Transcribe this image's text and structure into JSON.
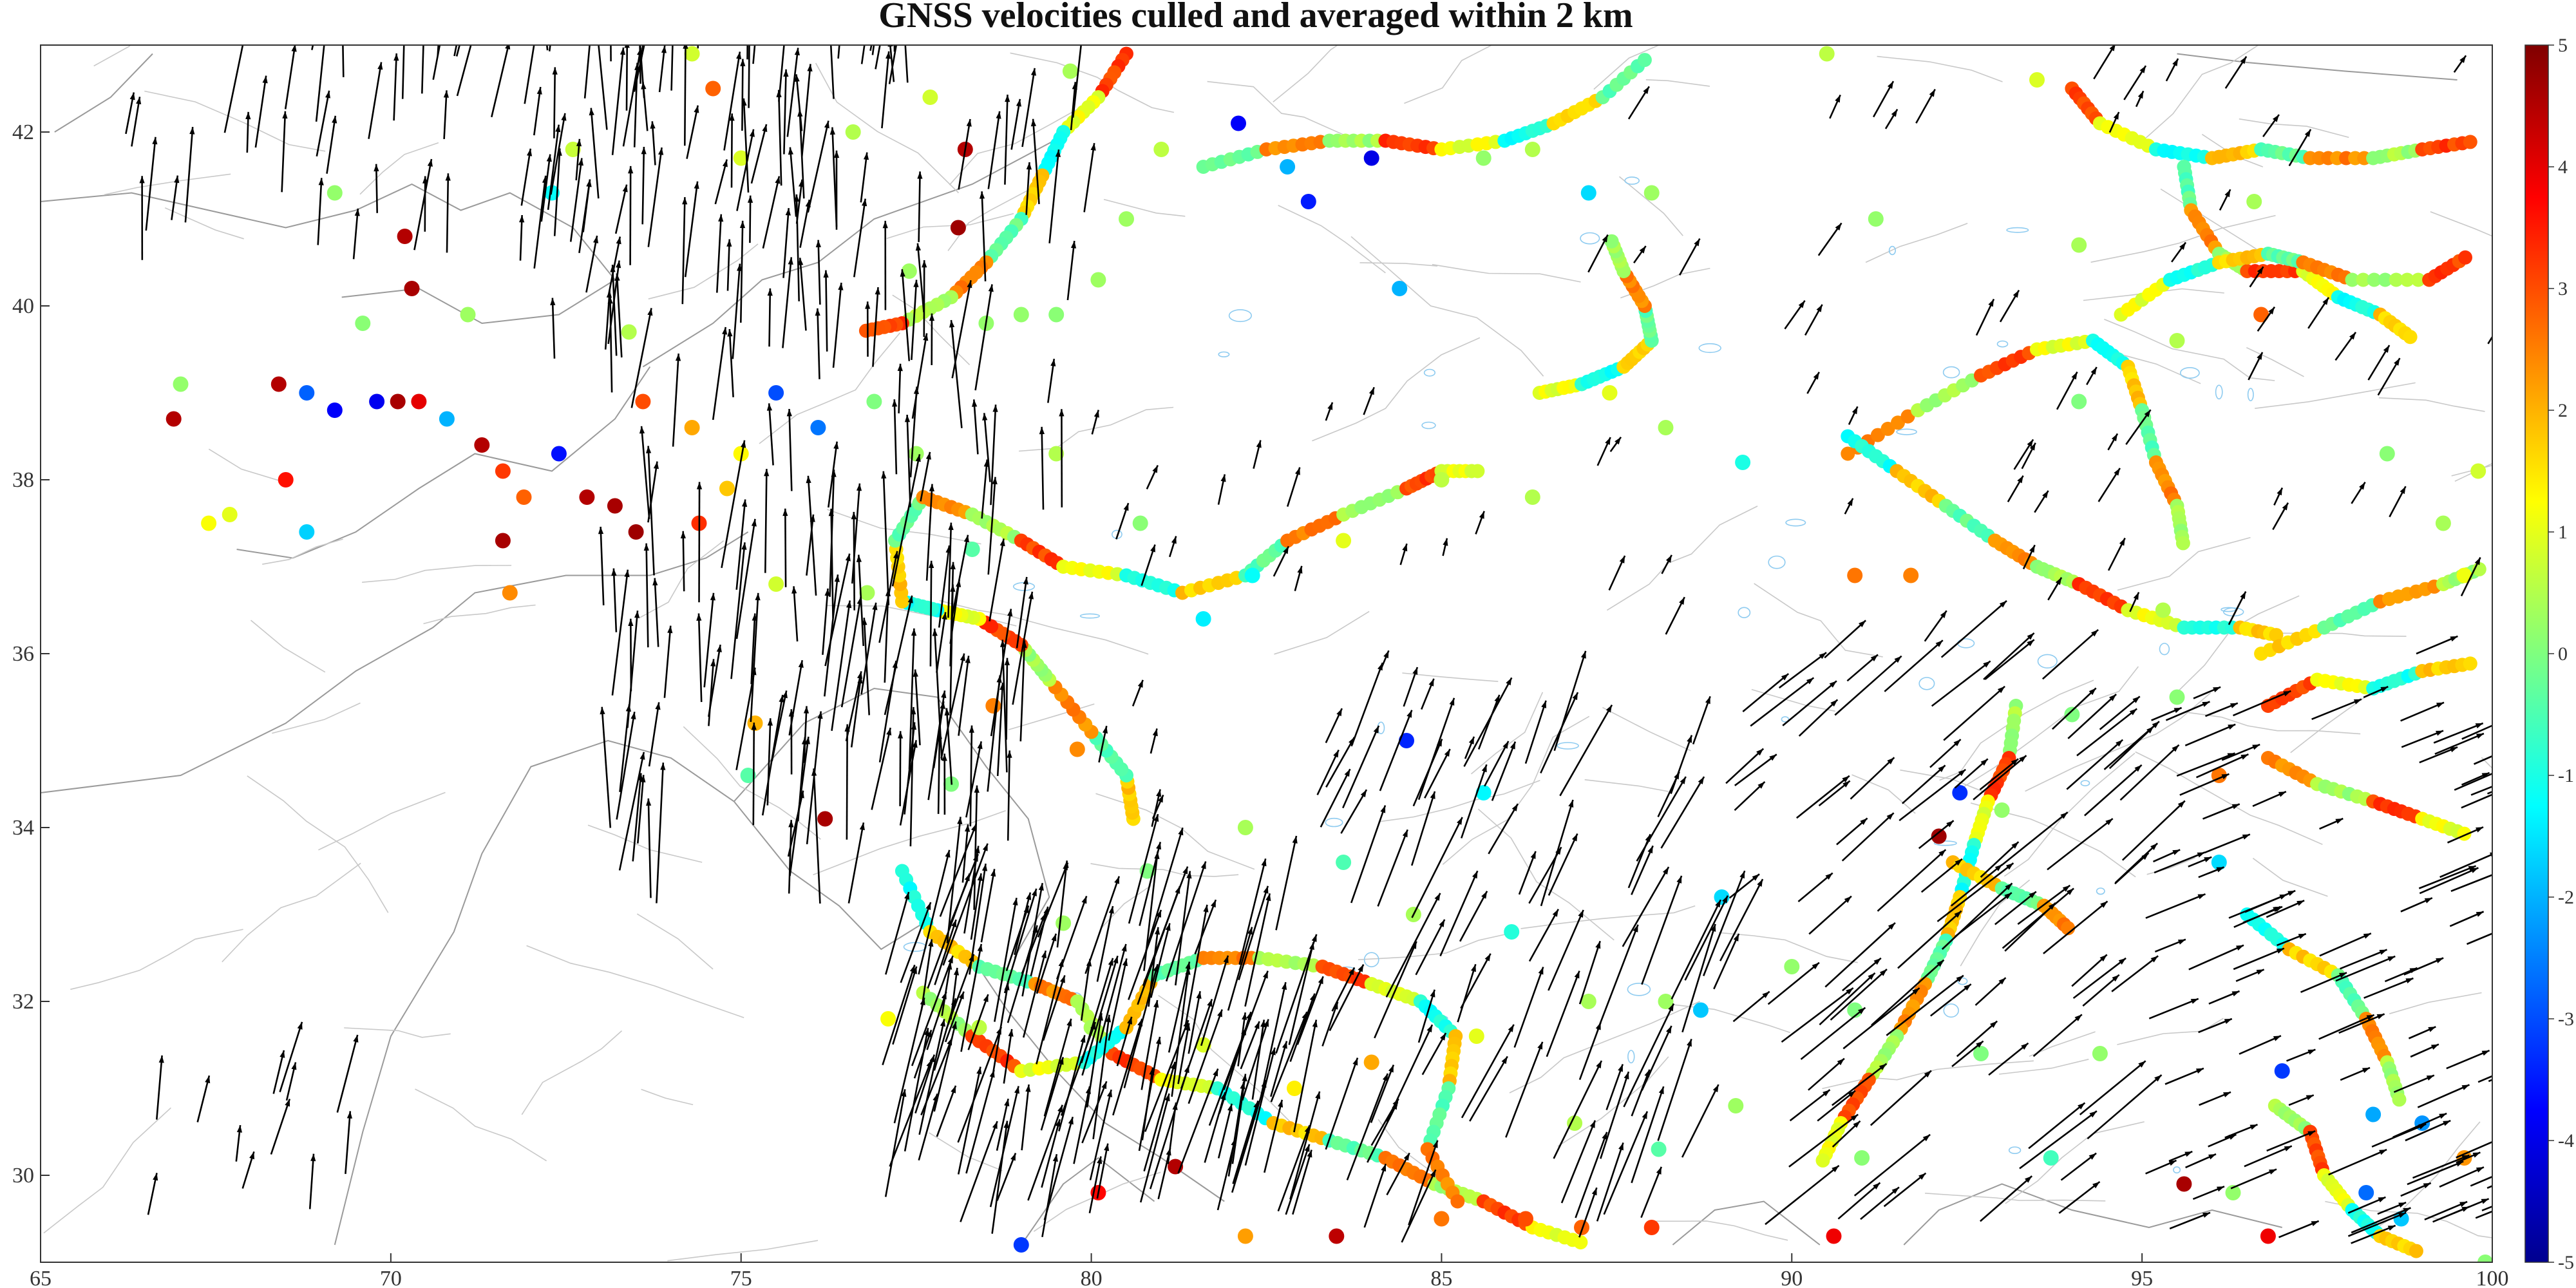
{
  "title": "GNSS velocities culled and averaged within 2 km",
  "map": {
    "x_ticks": [
      "65",
      "70",
      "75",
      "80",
      "85",
      "90",
      "95",
      "100"
    ],
    "y_ticks": [
      "42",
      "40",
      "38",
      "36",
      "34",
      "32",
      "30"
    ],
    "lon_range": [
      65,
      100
    ],
    "lat_range": [
      29.0,
      43.0
    ]
  },
  "colorbar": {
    "ticks": [
      "5",
      "4",
      "3",
      "2",
      "1",
      "0",
      "-1",
      "-2",
      "-3",
      "-4",
      "-5"
    ],
    "range": [
      -5,
      5
    ],
    "colormap": "jet"
  },
  "colors": {
    "arrow": "#000000",
    "border": "#9a9a9a",
    "fault": "#c8c8c8",
    "lake": "#8ecbf0",
    "frame": "#333333"
  },
  "chart_data": {
    "type": "scatter",
    "title": "GNSS velocities culled and averaged within 2 km",
    "xlim": [
      65,
      100
    ],
    "ylim": [
      29.0,
      43.0
    ],
    "colorbar_range": [
      -5,
      5
    ],
    "points": [
      [
        67.0,
        39.1,
        0.2
      ],
      [
        66.9,
        38.7,
        4.5
      ],
      [
        67.4,
        37.5,
        1.2
      ],
      [
        68.5,
        38.0,
        3.6
      ],
      [
        68.4,
        39.1,
        4.5
      ],
      [
        68.8,
        39.0,
        -2.8
      ],
      [
        69.2,
        38.8,
        -3.8
      ],
      [
        69.8,
        38.9,
        -3.9
      ],
      [
        70.1,
        38.9,
        4.6
      ],
      [
        70.4,
        38.9,
        4.0
      ],
      [
        70.8,
        38.7,
        -2.0
      ],
      [
        71.3,
        38.4,
        4.5
      ],
      [
        71.6,
        38.1,
        3.2
      ],
      [
        71.9,
        37.8,
        2.8
      ],
      [
        71.6,
        37.3,
        4.6
      ],
      [
        71.7,
        36.7,
        2.4
      ],
      [
        72.4,
        38.3,
        -3.6
      ],
      [
        72.8,
        37.8,
        4.5
      ],
      [
        73.2,
        37.7,
        4.6
      ],
      [
        73.5,
        37.4,
        4.7
      ],
      [
        74.4,
        37.5,
        3.3
      ],
      [
        74.3,
        38.6,
        2.1
      ],
      [
        73.6,
        38.9,
        3.0
      ],
      [
        70.2,
        40.8,
        4.5
      ],
      [
        70.3,
        40.2,
        4.6
      ],
      [
        69.2,
        41.3,
        0.2
      ],
      [
        72.3,
        41.3,
        -1.2
      ],
      [
        72.6,
        41.8,
        0.7
      ],
      [
        74.3,
        42.9,
        0.8
      ],
      [
        74.6,
        42.5,
        2.8
      ],
      [
        75.0,
        41.7,
        0.9
      ],
      [
        76.6,
        42.0,
        0.5
      ],
      [
        77.7,
        42.4,
        0.8
      ],
      [
        79.7,
        42.7,
        0.4
      ],
      [
        78.2,
        41.8,
        4.5
      ],
      [
        78.1,
        40.9,
        4.7
      ],
      [
        77.4,
        40.4,
        0.3
      ],
      [
        78.5,
        39.8,
        0.2
      ],
      [
        79.0,
        39.9,
        0.2
      ],
      [
        79.5,
        39.9,
        0.1
      ],
      [
        80.1,
        40.3,
        0.3
      ],
      [
        80.5,
        41.0,
        0.3
      ],
      [
        81.0,
        41.8,
        0.6
      ],
      [
        82.1,
        42.1,
        -3.8
      ],
      [
        82.8,
        41.6,
        -2.0
      ],
      [
        83.1,
        41.2,
        -3.5
      ],
      [
        84.0,
        41.7,
        -4.0
      ],
      [
        84.4,
        40.2,
        -2.0
      ],
      [
        85.6,
        41.7,
        0.2
      ],
      [
        86.3,
        41.8,
        0.5
      ],
      [
        87.1,
        41.3,
        -1.6
      ],
      [
        88.0,
        41.3,
        0.3
      ],
      [
        90.5,
        42.9,
        0.6
      ],
      [
        91.2,
        41.0,
        0.2
      ],
      [
        75.2,
        35.2,
        2.0
      ],
      [
        75.1,
        34.6,
        -0.4
      ],
      [
        76.2,
        34.1,
        4.6
      ],
      [
        78.0,
        34.5,
        0.0
      ],
      [
        78.6,
        35.4,
        2.5
      ],
      [
        79.8,
        34.9,
        2.4
      ],
      [
        82.2,
        34.0,
        0.4
      ],
      [
        83.6,
        33.6,
        -0.5
      ],
      [
        84.6,
        33.0,
        0.4
      ],
      [
        86.0,
        32.8,
        -0.9
      ],
      [
        87.1,
        32.0,
        0.4
      ],
      [
        88.2,
        32.0,
        0.3
      ],
      [
        89.0,
        33.2,
        -1.6
      ],
      [
        88.7,
        31.9,
        -1.8
      ],
      [
        90.0,
        32.4,
        0.2
      ],
      [
        91.0,
        30.2,
        0.1
      ],
      [
        79.0,
        29.2,
        -3.2
      ],
      [
        80.1,
        29.8,
        3.7
      ],
      [
        81.2,
        30.1,
        4.5
      ],
      [
        82.2,
        29.3,
        2.2
      ],
      [
        83.5,
        29.3,
        4.4
      ],
      [
        85.0,
        29.5,
        2.6
      ],
      [
        86.2,
        29.5,
        3.0
      ],
      [
        87.0,
        29.4,
        2.8
      ],
      [
        88.0,
        29.4,
        3.2
      ],
      [
        90.6,
        29.3,
        3.9
      ],
      [
        92.4,
        34.4,
        -3.3
      ],
      [
        92.1,
        33.9,
        4.7
      ],
      [
        93.0,
        34.2,
        0.2
      ],
      [
        94.0,
        35.3,
        0.0
      ],
      [
        95.5,
        35.5,
        0.1
      ],
      [
        95.3,
        36.5,
        0.5
      ],
      [
        96.1,
        34.6,
        2.6
      ],
      [
        96.1,
        33.6,
        -1.6
      ],
      [
        97.0,
        31.2,
        -3.2
      ],
      [
        98.3,
        30.7,
        -2.1
      ],
      [
        99.0,
        30.6,
        -2.3
      ],
      [
        98.2,
        29.8,
        -2.7
      ],
      [
        99.6,
        30.2,
        2.3
      ],
      [
        95.6,
        29.9,
        4.6
      ],
      [
        96.3,
        29.8,
        0.2
      ],
      [
        96.8,
        29.3,
        3.9
      ],
      [
        98.7,
        29.5,
        -1.8
      ],
      [
        99.9,
        29.0,
        0.1
      ],
      [
        99.6,
        36.9,
        1.1
      ],
      [
        99.3,
        37.5,
        0.4
      ],
      [
        99.8,
        38.1,
        0.8
      ],
      [
        98.5,
        38.3,
        0.1
      ],
      [
        96.7,
        39.9,
        2.8
      ],
      [
        95.5,
        39.6,
        0.5
      ],
      [
        94.1,
        40.7,
        0.4
      ],
      [
        93.5,
        42.6,
        0.9
      ],
      [
        96.6,
        41.2,
        0.4
      ],
      [
        94.1,
        38.9,
        0.0
      ],
      [
        91.7,
        36.9,
        2.5
      ],
      [
        90.9,
        36.9,
        2.6
      ],
      [
        89.3,
        38.2,
        -1.0
      ],
      [
        88.2,
        38.6,
        0.4
      ],
      [
        87.4,
        39.0,
        1.0
      ],
      [
        86.3,
        37.8,
        0.5
      ],
      [
        85.0,
        38.0,
        0.6
      ],
      [
        83.6,
        37.3,
        1.0
      ],
      [
        82.3,
        36.9,
        -1.2
      ],
      [
        81.6,
        36.4,
        -1.4
      ],
      [
        80.7,
        37.5,
        0.1
      ],
      [
        79.5,
        38.3,
        0.5
      ],
      [
        78.3,
        37.2,
        -0.4
      ],
      [
        77.5,
        38.3,
        0.3
      ],
      [
        76.9,
        38.9,
        0.0
      ],
      [
        76.1,
        38.6,
        -2.6
      ],
      [
        75.5,
        39.0,
        -3.0
      ],
      [
        75.0,
        38.3,
        1.3
      ],
      [
        74.8,
        37.9,
        1.8
      ],
      [
        73.4,
        39.7,
        0.5
      ],
      [
        71.1,
        39.9,
        0.3
      ],
      [
        69.6,
        39.8,
        0.1
      ],
      [
        68.8,
        37.4,
        -1.7
      ],
      [
        67.7,
        37.6,
        1.0
      ],
      [
        76.8,
        36.7,
        0.4
      ],
      [
        75.5,
        36.8,
        0.8
      ],
      [
        85.6,
        34.4,
        -1.3
      ],
      [
        84.5,
        35.0,
        -3.4
      ],
      [
        80.8,
        33.5,
        0.0
      ],
      [
        79.6,
        32.9,
        0.3
      ],
      [
        80.0,
        31.7,
        0.4
      ],
      [
        78.4,
        31.7,
        0.6
      ],
      [
        77.1,
        31.8,
        1.2
      ],
      [
        81.6,
        31.5,
        0.9
      ],
      [
        82.9,
        31.0,
        1.4
      ],
      [
        84.0,
        31.3,
        2.1
      ],
      [
        85.5,
        31.6,
        1.0
      ],
      [
        86.9,
        30.6,
        0.5
      ],
      [
        88.1,
        30.3,
        -0.4
      ],
      [
        89.2,
        30.8,
        0.3
      ],
      [
        90.9,
        31.9,
        0.0
      ],
      [
        92.7,
        31.4,
        0.0
      ],
      [
        94.4,
        31.4,
        0.2
      ],
      [
        93.7,
        30.2,
        -0.6
      ]
    ],
    "tracks": [
      [
        [
          77.3,
          33.5
        ],
        [
          77.7,
          32.8
        ],
        [
          78.4,
          32.4
        ],
        [
          79.2,
          32.2
        ],
        [
          79.8,
          32.0
        ],
        [
          80.3,
          31.4
        ],
        [
          81.0,
          31.1
        ],
        [
          81.8,
          31.0
        ],
        [
          82.6,
          30.6
        ],
        [
          83.4,
          30.4
        ],
        [
          84.2,
          30.2
        ],
        [
          84.9,
          29.9
        ],
        [
          85.6,
          29.7
        ],
        [
          86.3,
          29.4
        ],
        [
          87.1,
          29.2
        ]
      ],
      [
        [
          77.6,
          32.1
        ],
        [
          78.3,
          31.6
        ],
        [
          79.0,
          31.2
        ],
        [
          79.9,
          31.3
        ],
        [
          80.5,
          31.7
        ],
        [
          80.9,
          32.3
        ],
        [
          81.6,
          32.5
        ],
        [
          82.4,
          32.5
        ],
        [
          83.3,
          32.4
        ],
        [
          84.0,
          32.2
        ],
        [
          84.7,
          32.0
        ],
        [
          85.2,
          31.6
        ],
        [
          85.1,
          31.0
        ],
        [
          84.8,
          30.3
        ],
        [
          85.3,
          29.6
        ]
      ],
      [
        [
          80.6,
          34.1
        ],
        [
          80.5,
          34.6
        ],
        [
          80.0,
          35.1
        ],
        [
          79.4,
          35.7
        ],
        [
          79.0,
          36.1
        ],
        [
          78.4,
          36.4
        ],
        [
          77.8,
          36.5
        ],
        [
          77.3,
          36.6
        ],
        [
          77.2,
          37.3
        ],
        [
          77.6,
          37.8
        ],
        [
          78.3,
          37.6
        ],
        [
          79.0,
          37.3
        ],
        [
          79.6,
          37.0
        ],
        [
          80.5,
          36.9
        ],
        [
          81.3,
          36.7
        ],
        [
          82.2,
          36.9
        ],
        [
          82.8,
          37.3
        ],
        [
          83.6,
          37.6
        ],
        [
          84.5,
          37.9
        ],
        [
          85.0,
          38.1
        ],
        [
          85.6,
          38.1
        ]
      ],
      [
        [
          80.5,
          42.9
        ],
        [
          80.1,
          42.4
        ],
        [
          79.6,
          42.0
        ],
        [
          79.3,
          41.5
        ],
        [
          79.0,
          41.0
        ],
        [
          78.5,
          40.5
        ],
        [
          78.0,
          40.1
        ],
        [
          77.3,
          39.8
        ],
        [
          76.7,
          39.7
        ]
      ],
      [
        [
          81.6,
          41.6
        ],
        [
          82.5,
          41.8
        ],
        [
          83.4,
          41.9
        ],
        [
          84.2,
          41.9
        ],
        [
          85.0,
          41.8
        ],
        [
          85.9,
          41.9
        ],
        [
          86.6,
          42.1
        ],
        [
          87.3,
          42.4
        ],
        [
          88.0,
          42.9
        ]
      ],
      [
        [
          86.4,
          39.0
        ],
        [
          87.0,
          39.1
        ],
        [
          87.6,
          39.3
        ],
        [
          88.0,
          39.6
        ],
        [
          87.9,
          40.0
        ],
        [
          87.6,
          40.4
        ],
        [
          87.4,
          40.8
        ]
      ],
      [
        [
          90.8,
          38.3
        ],
        [
          91.8,
          38.8
        ],
        [
          92.7,
          39.2
        ],
        [
          93.5,
          39.5
        ],
        [
          94.3,
          39.6
        ],
        [
          94.8,
          39.3
        ],
        [
          95.0,
          38.8
        ],
        [
          95.2,
          38.2
        ],
        [
          95.5,
          37.7
        ],
        [
          95.6,
          37.2
        ]
      ],
      [
        [
          90.8,
          38.5
        ],
        [
          91.5,
          38.1
        ],
        [
          92.2,
          37.7
        ],
        [
          92.9,
          37.3
        ],
        [
          93.5,
          37.0
        ],
        [
          94.1,
          36.8
        ],
        [
          94.8,
          36.5
        ],
        [
          95.6,
          36.3
        ],
        [
          96.4,
          36.3
        ],
        [
          97.0,
          36.2
        ]
      ],
      [
        [
          93.2,
          35.4
        ],
        [
          93.1,
          34.8
        ],
        [
          92.8,
          34.3
        ],
        [
          92.6,
          33.8
        ],
        [
          92.4,
          33.2
        ],
        [
          92.2,
          32.7
        ],
        [
          91.9,
          32.2
        ],
        [
          91.5,
          31.6
        ],
        [
          91.1,
          31.1
        ],
        [
          90.7,
          30.6
        ],
        [
          90.4,
          30.1
        ]
      ],
      [
        [
          92.3,
          33.6
        ],
        [
          93.0,
          33.3
        ],
        [
          93.6,
          33.1
        ],
        [
          94.0,
          32.8
        ]
      ],
      [
        [
          94.0,
          42.5
        ],
        [
          94.4,
          42.1
        ],
        [
          95.2,
          41.8
        ],
        [
          96.0,
          41.7
        ],
        [
          96.7,
          41.8
        ],
        [
          97.4,
          41.7
        ],
        [
          98.3,
          41.7
        ],
        [
          99.0,
          41.8
        ],
        [
          99.8,
          41.9
        ]
      ],
      [
        [
          95.6,
          41.6
        ],
        [
          95.7,
          41.1
        ],
        [
          96.1,
          40.6
        ],
        [
          96.5,
          40.4
        ],
        [
          97.3,
          40.4
        ],
        [
          97.8,
          40.1
        ],
        [
          98.4,
          39.9
        ],
        [
          98.9,
          39.6
        ]
      ],
      [
        [
          94.7,
          39.9
        ],
        [
          95.4,
          40.3
        ],
        [
          96.1,
          40.5
        ],
        [
          96.8,
          40.6
        ],
        [
          97.3,
          40.5
        ],
        [
          98.0,
          40.3
        ],
        [
          99.1,
          40.3
        ],
        [
          99.7,
          40.6
        ]
      ],
      [
        [
          96.8,
          34.8
        ],
        [
          97.5,
          34.5
        ],
        [
          98.3,
          34.3
        ],
        [
          99.0,
          34.1
        ],
        [
          99.7,
          33.9
        ]
      ],
      [
        [
          96.5,
          33.0
        ],
        [
          97.1,
          32.6
        ],
        [
          97.8,
          32.3
        ],
        [
          98.2,
          31.8
        ],
        [
          98.5,
          31.3
        ],
        [
          98.7,
          30.8
        ]
      ],
      [
        [
          96.9,
          30.8
        ],
        [
          97.4,
          30.5
        ],
        [
          97.6,
          30.0
        ],
        [
          98.0,
          29.6
        ],
        [
          98.4,
          29.3
        ],
        [
          99.0,
          29.1
        ]
      ],
      [
        [
          96.7,
          36.0
        ],
        [
          97.6,
          36.3
        ],
        [
          98.4,
          36.6
        ],
        [
          99.3,
          36.8
        ],
        [
          99.9,
          37.0
        ]
      ],
      [
        [
          96.8,
          35.4
        ],
        [
          97.5,
          35.7
        ],
        [
          98.3,
          35.6
        ],
        [
          99.0,
          35.8
        ],
        [
          99.8,
          35.9
        ]
      ]
    ]
  }
}
